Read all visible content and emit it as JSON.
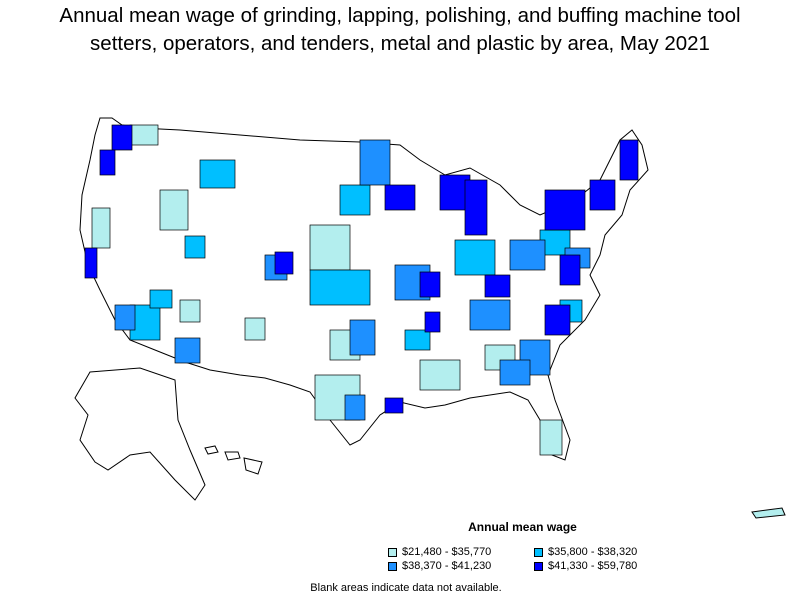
{
  "map": {
    "title_line1": "Annual mean wage of grinding, lapping, polishing, and buffing machine tool",
    "title_line2": "setters, operators, and tenders, metal and plastic by area, May 2021",
    "legend": {
      "title": "Annual mean wage",
      "items": [
        {
          "label": "$21,480 - $35,770",
          "color": "#b3eeee"
        },
        {
          "label": "$35,800 - $38,320",
          "color": "#00bfff"
        },
        {
          "label": "$38,370 - $41,230",
          "color": "#1e90ff"
        },
        {
          "label": "$41,330 - $59,780",
          "color": "#0000ff"
        }
      ]
    },
    "note": "Blank areas indicate data not available."
  }
}
